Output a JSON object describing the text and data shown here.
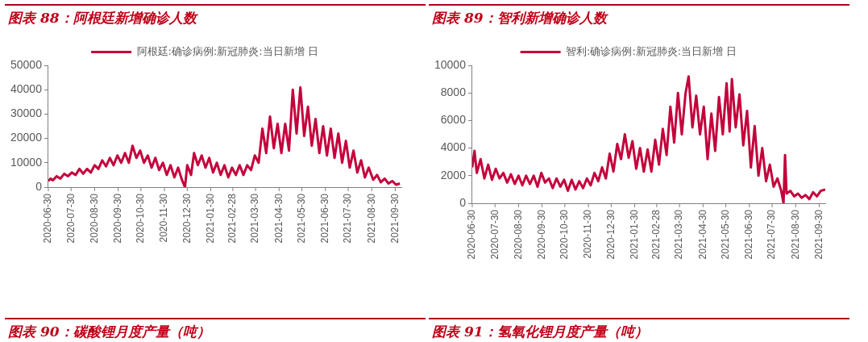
{
  "chart_data": [
    {
      "type": "line",
      "title": "图表 88：阿根廷新增确诊人数",
      "legend": "top",
      "marker": "none",
      "annotations": [
        "图表 90：碳酸锂月度产量（吨）"
      ],
      "xlim": [
        "2020-06-30",
        "2021-10-08"
      ],
      "xticks": [
        "2020-06-30",
        "2020-07-30",
        "2020-08-30",
        "2020-09-30",
        "2020-10-30",
        "2020-11-30",
        "2020-12-30",
        "2021-01-30",
        "2021-02-28",
        "2021-03-30",
        "2021-04-30",
        "2021-05-30",
        "2021-06-30",
        "2021-07-30",
        "2021-08-30",
        "2021-09-30"
      ],
      "ylim": [
        0,
        50000
      ],
      "yticks": [
        0,
        10000,
        20000,
        30000,
        40000,
        50000
      ],
      "series": [
        {
          "name": "阿根廷:确诊病例:新冠肺炎:当日新增 日",
          "color": "#c4003b",
          "x": [
            "2020-06-30",
            "2020-07-03",
            "2020-07-06",
            "2020-07-11",
            "2020-07-16",
            "2020-07-21",
            "2020-07-26",
            "2020-07-31",
            "2020-08-05",
            "2020-08-10",
            "2020-08-15",
            "2020-08-20",
            "2020-08-25",
            "2020-08-30",
            "2020-09-04",
            "2020-09-09",
            "2020-09-14",
            "2020-09-19",
            "2020-09-24",
            "2020-09-29",
            "2020-10-04",
            "2020-10-09",
            "2020-10-14",
            "2020-10-19",
            "2020-10-24",
            "2020-10-29",
            "2020-11-03",
            "2020-11-08",
            "2020-11-13",
            "2020-11-18",
            "2020-11-23",
            "2020-11-28",
            "2020-12-03",
            "2020-12-08",
            "2020-12-13",
            "2020-12-18",
            "2020-12-23",
            "2020-12-27",
            "2020-12-30",
            "2021-01-04",
            "2021-01-08",
            "2021-01-13",
            "2021-01-18",
            "2021-01-23",
            "2021-01-28",
            "2021-02-02",
            "2021-02-07",
            "2021-02-12",
            "2021-02-17",
            "2021-02-22",
            "2021-02-27",
            "2021-03-04",
            "2021-03-09",
            "2021-03-14",
            "2021-03-19",
            "2021-03-24",
            "2021-03-29",
            "2021-04-03",
            "2021-04-08",
            "2021-04-13",
            "2021-04-18",
            "2021-04-23",
            "2021-04-28",
            "2021-05-03",
            "2021-05-08",
            "2021-05-13",
            "2021-05-18",
            "2021-05-23",
            "2021-05-28",
            "2021-06-02",
            "2021-06-07",
            "2021-06-12",
            "2021-06-17",
            "2021-06-22",
            "2021-06-27",
            "2021-07-02",
            "2021-07-07",
            "2021-07-12",
            "2021-07-17",
            "2021-07-22",
            "2021-07-27",
            "2021-08-01",
            "2021-08-06",
            "2021-08-11",
            "2021-08-16",
            "2021-08-21",
            "2021-08-26",
            "2021-09-01",
            "2021-09-06",
            "2021-09-11",
            "2021-09-16",
            "2021-09-21",
            "2021-09-26",
            "2021-10-01",
            "2021-10-06"
          ],
          "values": [
            2500,
            3500,
            2800,
            4500,
            3500,
            5500,
            4500,
            6000,
            5000,
            7500,
            5500,
            7500,
            6000,
            9000,
            7500,
            11000,
            8500,
            12000,
            9000,
            13000,
            10000,
            14000,
            10000,
            17000,
            12000,
            15000,
            10000,
            13000,
            8000,
            12000,
            7000,
            10000,
            5000,
            9000,
            4000,
            8000,
            3000,
            0,
            9000,
            5000,
            14000,
            9000,
            13000,
            8000,
            12000,
            6000,
            10000,
            5000,
            9000,
            4000,
            8000,
            5000,
            9000,
            5000,
            9000,
            7000,
            13000,
            10000,
            24000,
            14000,
            29000,
            16000,
            26000,
            14000,
            26000,
            15000,
            40000,
            22000,
            41000,
            21000,
            33000,
            17000,
            28000,
            14000,
            25000,
            13000,
            24000,
            12000,
            22000,
            10000,
            19000,
            8000,
            15000,
            6000,
            11000,
            4000,
            8000,
            3000,
            5000,
            2000,
            3500,
            1500,
            2500,
            1000,
            1500
          ]
        }
      ]
    },
    {
      "type": "line",
      "title": "图表 89：智利新增确诊人数",
      "legend": "top",
      "marker": "none",
      "annotations": [
        "图表 91：氢氧化锂月度产量（吨）"
      ],
      "xlim": [
        "2020-06-30",
        "2021-10-08"
      ],
      "xticks": [
        "2020-06-30",
        "2020-07-30",
        "2020-08-30",
        "2020-09-30",
        "2020-10-30",
        "2020-11-30",
        "2020-12-30",
        "2021-01-30",
        "2021-02-28",
        "2021-03-30",
        "2021-04-30",
        "2021-05-30",
        "2021-06-30",
        "2021-07-30",
        "2021-08-30",
        "2021-09-30"
      ],
      "ylim": [
        0,
        10000
      ],
      "yticks": [
        0,
        2000,
        4000,
        6000,
        8000,
        10000
      ],
      "series": [
        {
          "name": "智利:确诊病例:新冠肺炎:当日新增 日",
          "color": "#c4003b",
          "x": [
            "2020-06-30",
            "2020-07-03",
            "2020-07-06",
            "2020-07-11",
            "2020-07-16",
            "2020-07-21",
            "2020-07-26",
            "2020-07-31",
            "2020-08-05",
            "2020-08-10",
            "2020-08-15",
            "2020-08-20",
            "2020-08-25",
            "2020-08-30",
            "2020-09-04",
            "2020-09-09",
            "2020-09-14",
            "2020-09-19",
            "2020-09-24",
            "2020-09-29",
            "2020-10-04",
            "2020-10-09",
            "2020-10-14",
            "2020-10-19",
            "2020-10-24",
            "2020-10-29",
            "2020-11-03",
            "2020-11-08",
            "2020-11-13",
            "2020-11-18",
            "2020-11-23",
            "2020-11-28",
            "2020-12-03",
            "2020-12-08",
            "2020-12-13",
            "2020-12-18",
            "2020-12-23",
            "2020-12-28",
            "2021-01-02",
            "2021-01-07",
            "2021-01-12",
            "2021-01-17",
            "2021-01-22",
            "2021-01-27",
            "2021-02-01",
            "2021-02-06",
            "2021-02-11",
            "2021-02-16",
            "2021-02-21",
            "2021-02-26",
            "2021-03-03",
            "2021-03-08",
            "2021-03-13",
            "2021-03-18",
            "2021-03-23",
            "2021-03-28",
            "2021-04-02",
            "2021-04-07",
            "2021-04-11",
            "2021-04-16",
            "2021-04-21",
            "2021-04-26",
            "2021-05-01",
            "2021-05-06",
            "2021-05-11",
            "2021-05-16",
            "2021-05-21",
            "2021-05-26",
            "2021-05-31",
            "2021-06-04",
            "2021-06-07",
            "2021-06-12",
            "2021-06-17",
            "2021-06-22",
            "2021-06-27",
            "2021-07-02",
            "2021-07-07",
            "2021-07-12",
            "2021-07-17",
            "2021-07-22",
            "2021-07-27",
            "2021-08-01",
            "2021-08-06",
            "2021-08-11",
            "2021-08-14",
            "2021-08-16",
            "2021-08-18",
            "2021-08-23",
            "2021-08-28",
            "2021-09-02",
            "2021-09-07",
            "2021-09-12",
            "2021-09-17",
            "2021-09-22",
            "2021-09-27",
            "2021-10-02",
            "2021-10-08"
          ],
          "values": [
            2600,
            3800,
            2200,
            3200,
            1800,
            2800,
            1700,
            2500,
            1800,
            2200,
            1500,
            2100,
            1400,
            2000,
            1300,
            2000,
            1400,
            2000,
            1200,
            2200,
            1500,
            1800,
            1100,
            1800,
            1200,
            1700,
            900,
            1700,
            1000,
            1600,
            1100,
            1800,
            1300,
            2200,
            1600,
            2600,
            1800,
            3600,
            2300,
            4300,
            3200,
            5000,
            3300,
            4500,
            2500,
            4000,
            2300,
            3900,
            2300,
            4600,
            2800,
            5400,
            3500,
            7000,
            4400,
            8000,
            5000,
            8000,
            9200,
            5500,
            7800,
            5000,
            7000,
            3200,
            6500,
            3800,
            7700,
            5000,
            8700,
            5200,
            9000,
            5500,
            7900,
            4200,
            6700,
            2600,
            5600,
            2000,
            4000,
            1600,
            2800,
            1200,
            1800,
            900,
            0,
            3500,
            700,
            900,
            500,
            700,
            400,
            600,
            300,
            800,
            500,
            900,
            1000
          ]
        }
      ]
    }
  ]
}
